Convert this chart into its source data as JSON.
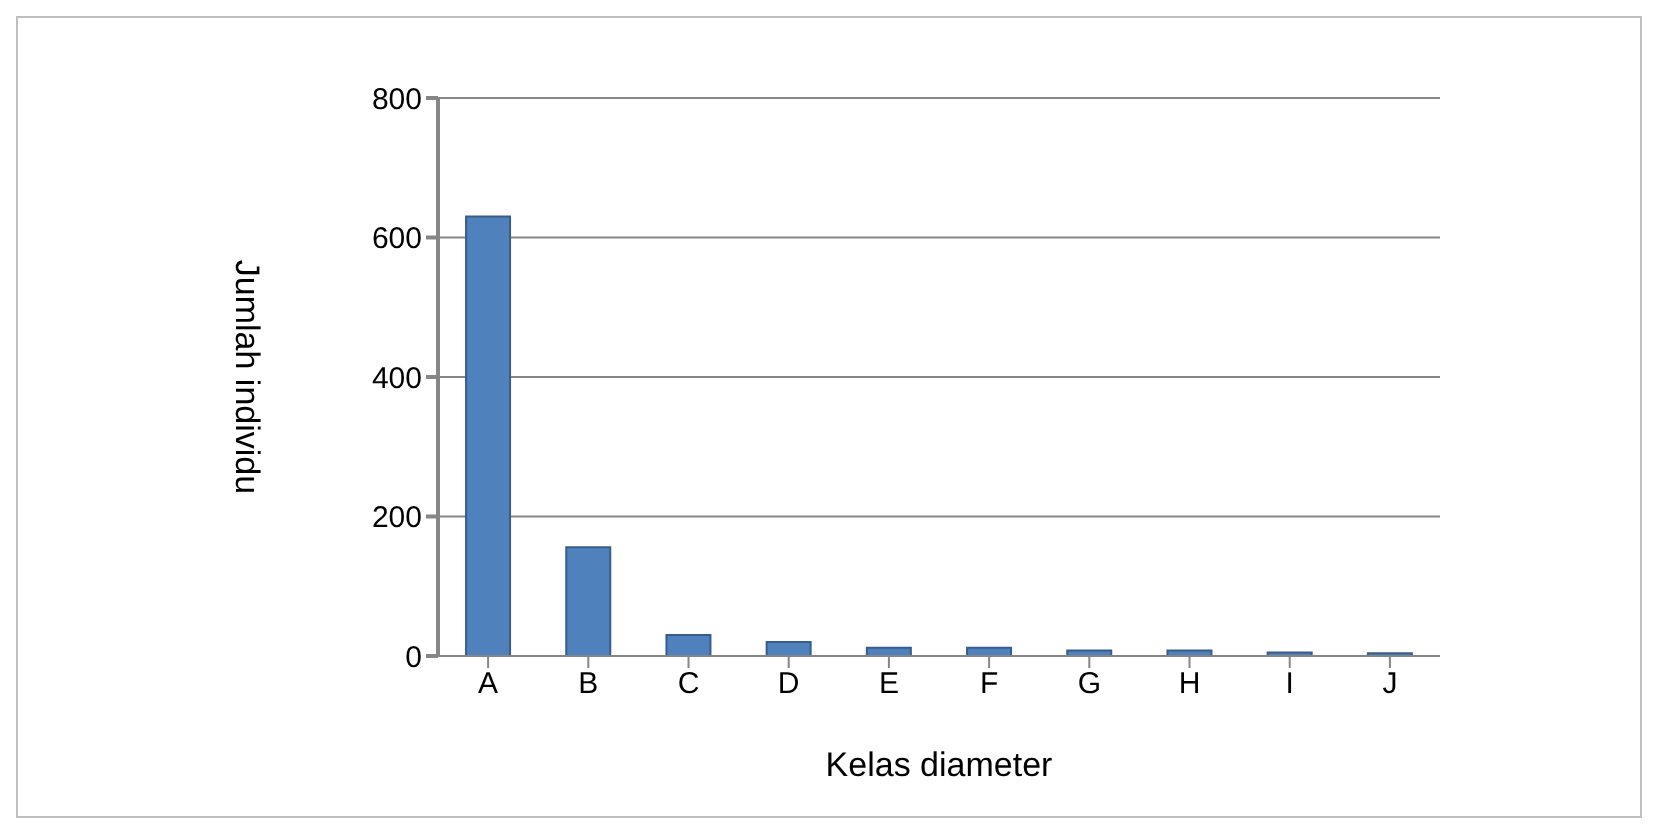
{
  "chart_data": {
    "type": "bar",
    "xlabel": "Kelas diameter",
    "ylabel": "Jumlah  individu",
    "categories": [
      "A",
      "B",
      "C",
      "D",
      "E",
      "F",
      "G",
      "H",
      "I",
      "J"
    ],
    "values": [
      630,
      156,
      30,
      20,
      12,
      12,
      8,
      8,
      5,
      4
    ],
    "color": "#4f81bd",
    "ylim": [
      0,
      800
    ],
    "yticks": [
      0,
      200,
      400,
      600,
      800
    ],
    "grid": "y"
  }
}
